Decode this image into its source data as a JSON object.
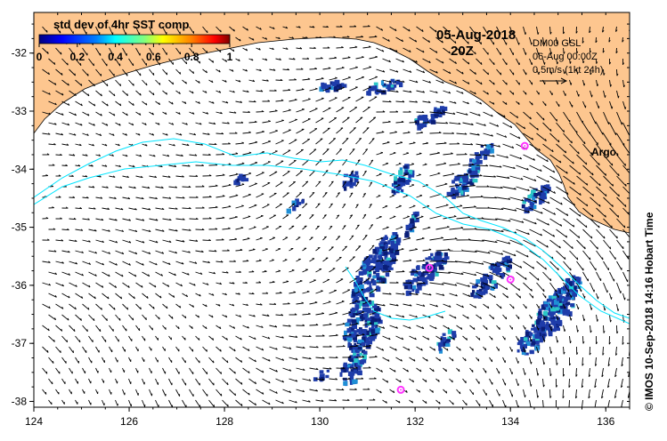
{
  "map": {
    "date_title": "05-Aug-2018",
    "time_title": "20Z",
    "colorbar": {
      "label": "std dev of 4hr SST comp",
      "ticks": [
        "0",
        "0.2",
        "0.4",
        "0.6",
        "0.8",
        "1"
      ],
      "colors": [
        "#000080",
        "#0000ff",
        "#0080ff",
        "#00ffff",
        "#80ff80",
        "#ffff00",
        "#ff8000",
        "#ff0000",
        "#800000"
      ]
    },
    "current_legend": {
      "model": "DM00 GSL",
      "datetime": "06-Aug 00:00Z",
      "scale": "0.5m/s (1kt 24h)"
    },
    "argo_label": "Argo",
    "credit": "© IMOS 10-Sep-2018 14:16 Hobart Time",
    "x_axis": {
      "min": 124,
      "max": 136.5,
      "ticks": [
        "124",
        "126",
        "128",
        "130",
        "132",
        "134",
        "136"
      ]
    },
    "y_axis": {
      "min": -38.1,
      "max": -31.3,
      "ticks": [
        "-32",
        "-33",
        "-34",
        "-35",
        "-36",
        "-37",
        "-38"
      ]
    },
    "argo_floats": [
      {
        "lon": 134.3,
        "lat": -33.6
      },
      {
        "lon": 132.3,
        "lat": -35.7
      },
      {
        "lon": 134.0,
        "lat": -35.9
      },
      {
        "lon": 131.7,
        "lat": -37.8
      }
    ],
    "colors": {
      "land": "#fdc68f",
      "sst_main": "#1e3caa",
      "sst_dark": "#0a1e78",
      "contour": "#00e5ff",
      "argo": "#ff33ff"
    }
  }
}
